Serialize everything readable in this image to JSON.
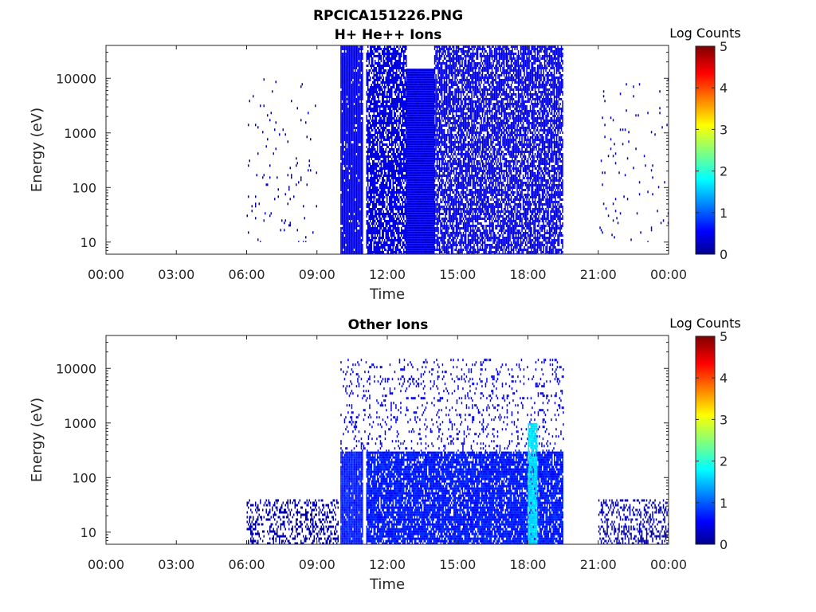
{
  "figure": {
    "suptitle": "RPCICA151226.PNG"
  },
  "chart_data": [
    {
      "type": "heatmap",
      "title": "H+ He++ Ions",
      "xlabel": "Time",
      "ylabel": "Energy (eV)",
      "x_ticks": [
        "00:00",
        "03:00",
        "06:00",
        "09:00",
        "12:00",
        "15:00",
        "18:00",
        "21:00",
        "00:00"
      ],
      "x_range_hours": [
        0,
        24
      ],
      "y_scale": "log",
      "y_ticks": [
        10,
        100,
        1000,
        10000
      ],
      "y_tick_labels": [
        "10",
        "100",
        "1000",
        "10000"
      ],
      "y_range": [
        6,
        40000
      ],
      "grid": false,
      "colorbar": {
        "label": "Log Counts",
        "range": [
          0,
          5
        ],
        "ticks": [
          "0",
          "1",
          "2",
          "3",
          "4",
          "5"
        ],
        "colormap": "jet"
      },
      "regions": [
        {
          "x_start_h": 10.0,
          "x_end_h": 10.95,
          "e_min": 6,
          "e_max": 40000,
          "level": 0.1,
          "density": 0.95
        },
        {
          "x_start_h": 11.1,
          "x_end_h": 12.8,
          "e_min": 6,
          "e_max": 40000,
          "level": 0.1,
          "density": 0.75
        },
        {
          "x_start_h": 12.8,
          "x_end_h": 14.0,
          "e_min": 6,
          "e_max": 15000,
          "level": 0.1,
          "density": 1.0
        },
        {
          "x_start_h": 14.0,
          "x_end_h": 19.5,
          "e_min": 6,
          "e_max": 40000,
          "level": 0.1,
          "density": 0.72
        },
        {
          "x_start_h": 6.0,
          "x_end_h": 9.0,
          "e_min": 10,
          "e_max": 10000,
          "level": 0.05,
          "density": 0.02
        },
        {
          "x_start_h": 21.0,
          "x_end_h": 24.0,
          "e_min": 10,
          "e_max": 10000,
          "level": 0.05,
          "density": 0.02
        }
      ]
    },
    {
      "type": "heatmap",
      "title": "Other Ions",
      "xlabel": "Time",
      "ylabel": "Energy (eV)",
      "x_ticks": [
        "00:00",
        "03:00",
        "06:00",
        "09:00",
        "12:00",
        "15:00",
        "18:00",
        "21:00",
        "00:00"
      ],
      "x_range_hours": [
        0,
        24
      ],
      "y_scale": "log",
      "y_ticks": [
        10,
        100,
        1000,
        10000
      ],
      "y_tick_labels": [
        "10",
        "100",
        "1000",
        "10000"
      ],
      "y_range": [
        6,
        40000
      ],
      "grid": false,
      "colorbar": {
        "label": "Log Counts",
        "range": [
          0,
          5
        ],
        "ticks": [
          "0",
          "1",
          "2",
          "3",
          "4",
          "5"
        ],
        "colormap": "jet"
      },
      "regions": [
        {
          "x_start_h": 10.0,
          "x_end_h": 10.95,
          "e_min": 6,
          "e_max": 300,
          "level": 0.15,
          "density": 0.95
        },
        {
          "x_start_h": 11.1,
          "x_end_h": 19.5,
          "e_min": 6,
          "e_max": 300,
          "level": 0.15,
          "density": 0.85
        },
        {
          "x_start_h": 10.0,
          "x_end_h": 19.5,
          "e_min": 300,
          "e_max": 15000,
          "level": 0.1,
          "density": 0.12
        },
        {
          "x_start_h": 18.0,
          "x_end_h": 18.4,
          "e_min": 6,
          "e_max": 1000,
          "level": 0.35,
          "density": 0.9
        },
        {
          "x_start_h": 6.0,
          "x_end_h": 9.9,
          "e_min": 6,
          "e_max": 40,
          "level": 0.05,
          "density": 0.35
        },
        {
          "x_start_h": 21.0,
          "x_end_h": 24.0,
          "e_min": 6,
          "e_max": 40,
          "level": 0.05,
          "density": 0.35
        }
      ]
    }
  ]
}
